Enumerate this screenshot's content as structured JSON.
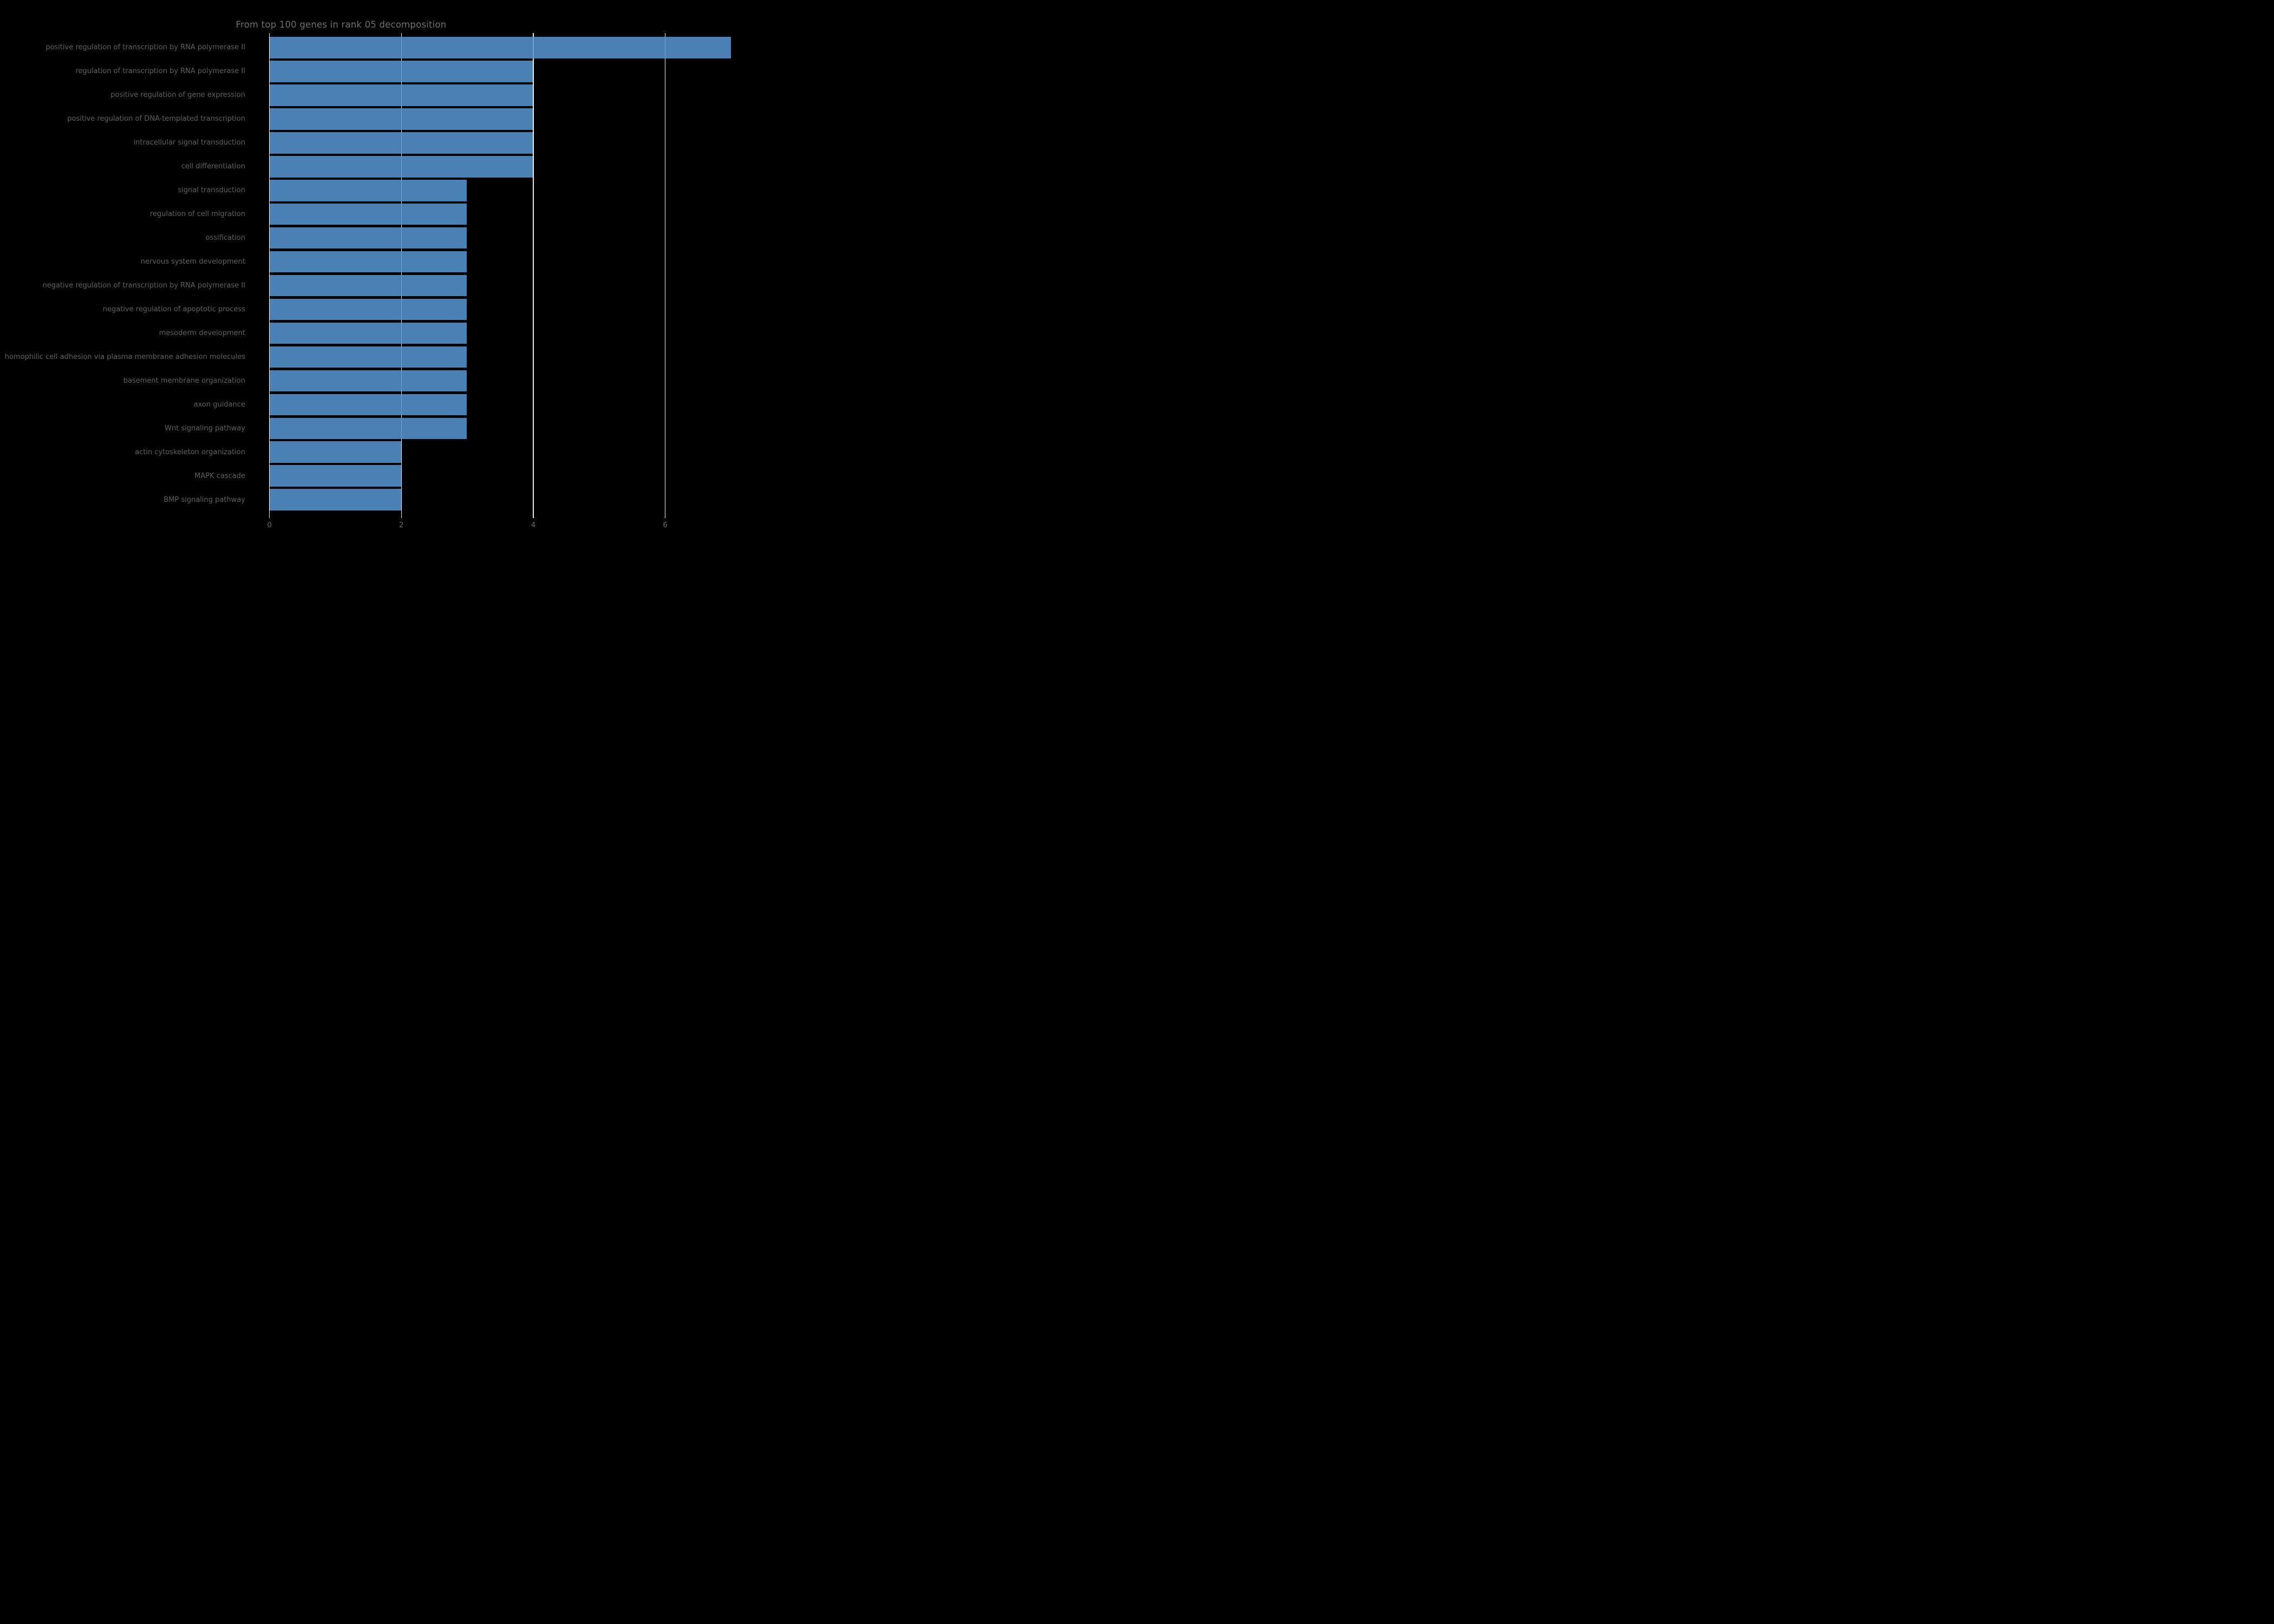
{
  "chart_data": {
    "type": "bar",
    "orientation": "horizontal",
    "title": "From top 100 genes in rank 05 decomposition",
    "categories": [
      "positive regulation of transcription by RNA polymerase II",
      "regulation of transcription by RNA polymerase II",
      "positive regulation of gene expression",
      "positive regulation of DNA-templated transcription",
      "intracellular signal transduction",
      "cell differentiation",
      "signal transduction",
      "regulation of cell migration",
      "ossification",
      "nervous system development",
      "negative regulation of transcription by RNA polymerase II",
      "negative regulation of apoptotic process",
      "mesoderm development",
      "homophilic cell adhesion via plasma membrane adhesion molecules",
      "basement membrane organization",
      "axon guidance",
      "Wnt signaling pathway",
      "actin cytoskeleton organization",
      "MAPK cascade",
      "BMP signaling pathway"
    ],
    "values": [
      7,
      4,
      4,
      4,
      4,
      4,
      3,
      3,
      3,
      3,
      3,
      3,
      3,
      3,
      3,
      3,
      3,
      2,
      2,
      2
    ],
    "xlabel": "",
    "ylabel": "",
    "xticks": [
      0,
      2,
      4,
      6
    ],
    "xlim": [
      0,
      7.4
    ],
    "grid": "vertical gridlines at xticks, drawn beneath semi-transparent bars",
    "legend_position": "none",
    "colors": {
      "background": "#000000",
      "bar_fill": "rgba(86,152,213,0.85)",
      "bar_apparent": "#4984b9",
      "gridline": "#ebebeb",
      "title_text": "#6e6e6e",
      "category_text": "#5e5e5e",
      "tick_text": "#6a6a6a"
    }
  }
}
